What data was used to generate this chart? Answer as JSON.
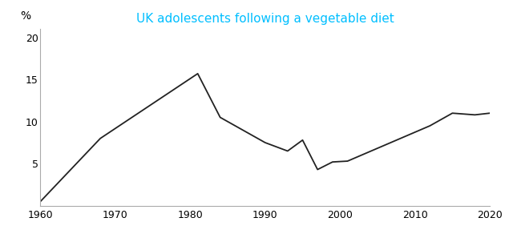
{
  "title": "UK adolescents following a vegetable diet",
  "title_color": "#00BFFF",
  "ylabel": "%",
  "x_values": [
    1960,
    1968,
    1981,
    1984,
    1990,
    1993,
    1995,
    1997,
    1999,
    2001,
    2012,
    2015,
    2018,
    2020
  ],
  "y_values": [
    0.5,
    8.0,
    15.7,
    10.5,
    7.5,
    6.5,
    7.8,
    4.3,
    5.2,
    5.3,
    9.5,
    11.0,
    10.8,
    11.0
  ],
  "xlim": [
    1960,
    2020
  ],
  "ylim": [
    0,
    21
  ],
  "yticks": [
    5,
    10,
    15,
    20
  ],
  "xticks": [
    1960,
    1970,
    1980,
    1990,
    2000,
    2010,
    2020
  ],
  "line_color": "#222222",
  "line_width": 1.3,
  "figsize": [
    6.3,
    3.02
  ],
  "dpi": 100,
  "spine_color": "#aaaaaa",
  "tick_fontsize": 9,
  "title_fontsize": 11
}
